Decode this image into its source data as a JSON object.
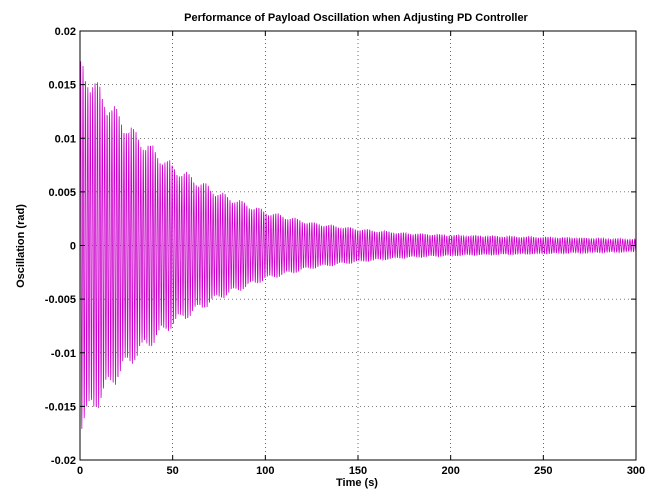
{
  "chart_data": {
    "type": "line",
    "title": "Performance of Payload Oscillation when Adjusting PD Controller",
    "xlabel": "Time (s)",
    "ylabel": "Oscillation (rad)",
    "xlim": [
      0,
      300
    ],
    "ylim": [
      -0.02,
      0.02
    ],
    "xticks": [
      0,
      50,
      100,
      150,
      200,
      250,
      300
    ],
    "xtick_labels": [
      "0",
      "50",
      "100",
      "150",
      "200",
      "250",
      "300"
    ],
    "yticks": [
      0.02,
      0.015,
      0.01,
      0.005,
      0,
      -0.005,
      -0.01,
      -0.015,
      -0.02
    ],
    "ytick_labels": [
      "0.02",
      "0.015",
      "0.01",
      "0.005",
      "0",
      "-0.005",
      "-0.01",
      "-0.015",
      "-0.02"
    ],
    "grid": true,
    "series": [
      {
        "color": "#cc00cc",
        "envelope_x": [
          0,
          2,
          5,
          10,
          20,
          30,
          50,
          75,
          100,
          125,
          150,
          175,
          200,
          250,
          300
        ],
        "envelope_y": [
          0.0175,
          0.0172,
          0.0165,
          0.0152,
          0.0128,
          0.0108,
          0.0077,
          0.0051,
          0.0033,
          0.0022,
          0.0016,
          0.0012,
          0.001,
          0.0008,
          0.0006
        ]
      }
    ]
  }
}
